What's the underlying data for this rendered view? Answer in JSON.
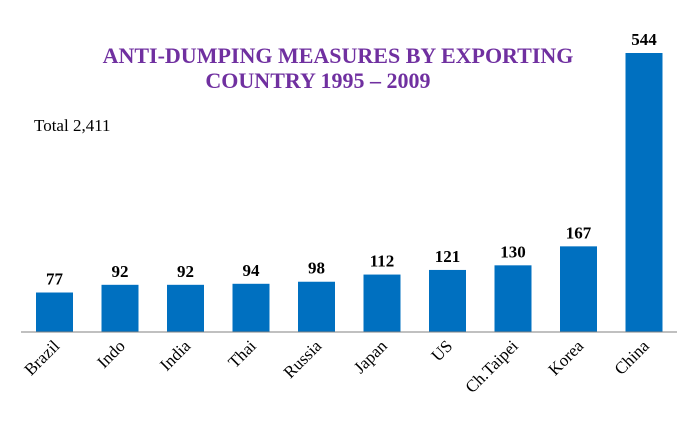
{
  "chart_data": {
    "type": "bar",
    "title_lines": [
      "ANTI-DUMPING MEASURES BY EXPORTING",
      "COUNTRY 1995 –  2009"
    ],
    "annotation": "Total  2,411",
    "categories": [
      "Brazil",
      "Indo",
      "India",
      "Thai",
      "Russia",
      "Japan",
      "US",
      "Ch.Taipei",
      "Korea",
      "China"
    ],
    "values": [
      77,
      92,
      92,
      94,
      98,
      112,
      121,
      130,
      167,
      544
    ],
    "data_labels": [
      "77",
      "92",
      "92",
      "94",
      "98",
      "112",
      "121",
      "130",
      "167",
      "544"
    ],
    "xlabel": "",
    "ylabel": "",
    "ylim": [
      0,
      544
    ],
    "grid": false,
    "legend": "none",
    "colors": {
      "bar": "#0070C0",
      "title": "#7030A0",
      "axis": "#808080"
    }
  }
}
